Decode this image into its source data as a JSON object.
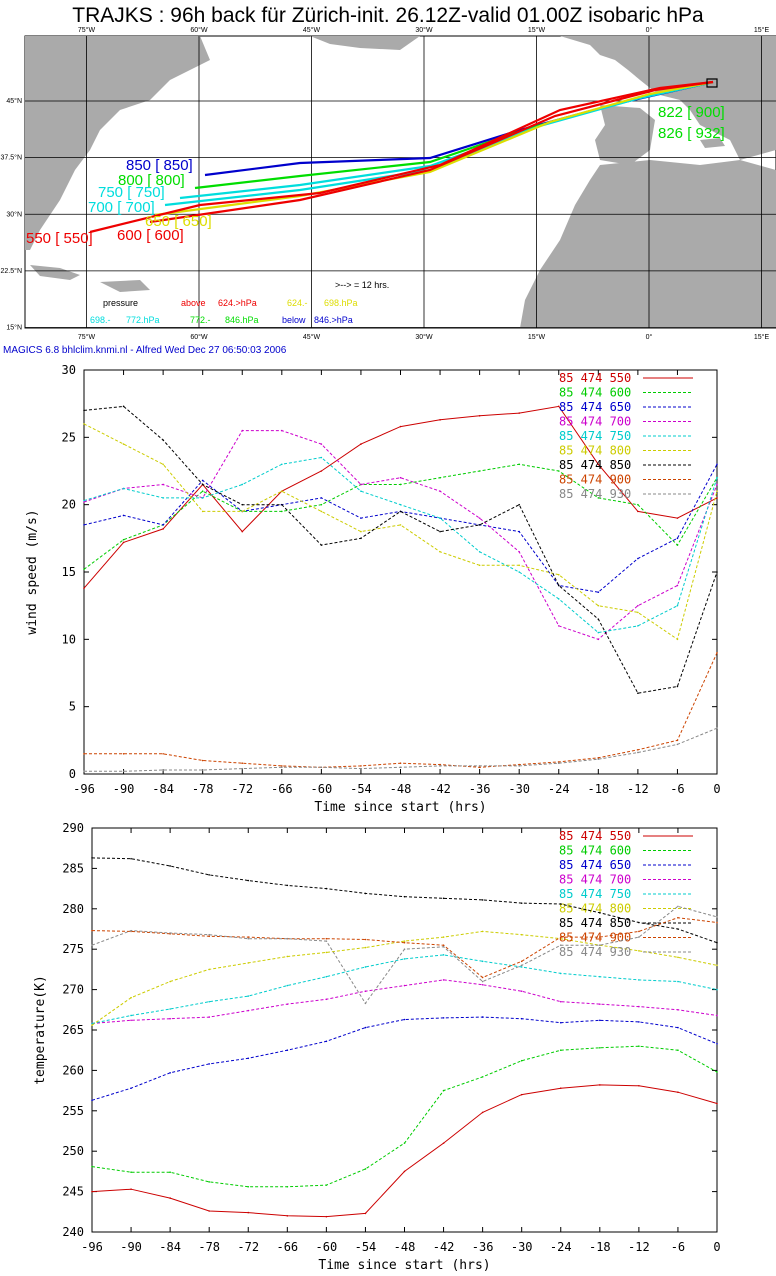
{
  "title": "TRAJKS : 96h back für Zürich-init. 26.12Z-valid 01.00Z isobaric hPa",
  "credit": "MAGICS 6.8 bhlclim.knmi.nl - Alfred Wed Dec 27 06:50:03 2006",
  "map": {
    "lon_labels": [
      "75°W",
      "60°W",
      "45°W",
      "30°W",
      "15°W",
      "0°",
      "15°E"
    ],
    "lon_values": [
      -75,
      -60,
      -45,
      -30,
      -15,
      0,
      15
    ],
    "lat_labels": [
      "45°N",
      "37.5°N",
      "30°N",
      "22.5°N",
      "15°N"
    ],
    "lat_values": [
      45,
      37.5,
      30,
      22.5,
      15
    ],
    "arrow_note": ">--> = 12 hrs.",
    "legend": {
      "pressure": "pressure",
      "above": "above",
      "above_val": "624.>hPa",
      "b2": "624.-",
      "b2_val": "698.hPa",
      "b3": "698.-",
      "b3_val": "772.hPa",
      "b4": "772.-",
      "b4_val": "846.hPa",
      "below": "below",
      "below_val": "846.>hPa"
    },
    "start_labels": [
      {
        "text": "850 [ 850]",
        "color": "#0000cc"
      },
      {
        "text": "800 [ 800]",
        "color": "#00dd00"
      },
      {
        "text": "750 [ 750]",
        "color": "#00dddd"
      },
      {
        "text": "700 [ 700]",
        "color": "#00dddd"
      },
      {
        "text": "650 [ 650]",
        "color": "#dddd00"
      },
      {
        "text": "600 [ 600]",
        "color": "#ee0000"
      },
      {
        "text": "550 [ 550]",
        "color": "#ee0000"
      }
    ],
    "end_labels": [
      {
        "text": "822 [ 900]",
        "color": "#00dd00"
      },
      {
        "text": "826 [ 932]",
        "color": "#00dd00"
      }
    ],
    "colors": {
      "land": "#aaaaaa",
      "sea": "#ffffff",
      "grid": "#000000"
    }
  },
  "chart_data": [
    {
      "type": "line",
      "ylabel": "wind speed (m/s)",
      "xlabel": "Time since start (hrs)",
      "xlim": [
        -96,
        0
      ],
      "ylim": [
        0,
        30
      ],
      "xticks": [
        -96,
        -90,
        -84,
        -78,
        -72,
        -66,
        -60,
        -54,
        -48,
        -42,
        -36,
        -30,
        -24,
        -18,
        -12,
        -6,
        0
      ],
      "yticks": [
        0,
        5,
        10,
        15,
        20,
        25,
        30
      ],
      "x": [
        -96,
        -90,
        -84,
        -78,
        -72,
        -66,
        -60,
        -54,
        -48,
        -42,
        -36,
        -30,
        -24,
        -18,
        -12,
        -6,
        0
      ],
      "series": [
        {
          "name": "85 474 550",
          "color": "#cc0000",
          "values": [
            13.8,
            17.2,
            18.2,
            21.5,
            18,
            21,
            22.5,
            24.5,
            25.8,
            26.3,
            26.6,
            26.8,
            27.3,
            23,
            19.5,
            19,
            20.5
          ]
        },
        {
          "name": "85 474 600",
          "color": "#00cc00",
          "values": [
            15.2,
            17.4,
            18.5,
            21,
            19.5,
            19.5,
            20,
            21.5,
            21.5,
            22,
            22.5,
            23,
            22.5,
            20.5,
            20,
            17,
            22
          ]
        },
        {
          "name": "85 474 650",
          "color": "#0000cc",
          "values": [
            18.5,
            19.2,
            18.5,
            21.8,
            19.5,
            20,
            20.5,
            19,
            19.5,
            19,
            18.5,
            18,
            14,
            13.5,
            16,
            17.5,
            23
          ]
        },
        {
          "name": "85 474 700",
          "color": "#cc00cc",
          "values": [
            20.2,
            21.2,
            21.5,
            20.5,
            25.5,
            25.5,
            24.5,
            21.5,
            22,
            21,
            19,
            16.5,
            11,
            10,
            12.5,
            14,
            21.5
          ]
        },
        {
          "name": "85 474 750",
          "color": "#00cccc",
          "values": [
            20.3,
            21.2,
            20.5,
            20.5,
            21.5,
            23,
            23.5,
            21,
            20,
            19,
            16.5,
            15,
            13,
            10.5,
            11,
            12.5,
            22
          ]
        },
        {
          "name": "85 474 800",
          "color": "#cccc00",
          "values": [
            26,
            24.5,
            23,
            19.5,
            19.5,
            21,
            19.5,
            18,
            18.5,
            16.5,
            15.5,
            15.5,
            14.8,
            12.5,
            12,
            10,
            21
          ]
        },
        {
          "name": "85 474 850",
          "color": "#000000",
          "values": [
            27,
            27.3,
            24.8,
            21.5,
            20,
            20,
            17,
            17.5,
            19.5,
            18,
            18.5,
            20,
            14,
            11.5,
            6,
            6.5,
            15
          ]
        },
        {
          "name": "85 474 900",
          "color": "#cc4400",
          "values": [
            1.5,
            1.5,
            1.5,
            1.0,
            0.8,
            0.6,
            0.5,
            0.6,
            0.8,
            0.7,
            0.5,
            0.7,
            0.9,
            1.2,
            1.8,
            2.5,
            9
          ]
        },
        {
          "name": "85 474 930",
          "color": "#888888",
          "values": [
            0.2,
            0.2,
            0.3,
            0.3,
            0.4,
            0.5,
            0.5,
            0.4,
            0.5,
            0.6,
            0.6,
            0.6,
            0.8,
            1.1,
            1.6,
            2.2,
            3.4
          ]
        }
      ]
    },
    {
      "type": "line",
      "ylabel": "temperature(K)",
      "xlabel": "Time since start (hrs)",
      "xlim": [
        -96,
        0
      ],
      "ylim": [
        240,
        290
      ],
      "xticks": [
        -96,
        -90,
        -84,
        -78,
        -72,
        -66,
        -60,
        -54,
        -48,
        -42,
        -36,
        -30,
        -24,
        -18,
        -12,
        -6,
        0
      ],
      "yticks": [
        240,
        245,
        250,
        255,
        260,
        265,
        270,
        275,
        280,
        285,
        290
      ],
      "x": [
        -96,
        -90,
        -84,
        -78,
        -72,
        -66,
        -60,
        -54,
        -48,
        -42,
        -36,
        -30,
        -24,
        -18,
        -12,
        -6,
        0
      ],
      "series": [
        {
          "name": "85 474 550",
          "color": "#cc0000",
          "values": [
            245,
            245.3,
            244.2,
            242.6,
            242.4,
            242,
            241.9,
            242.3,
            247.5,
            251,
            254.8,
            257,
            257.8,
            258.2,
            258.1,
            257.3,
            255.9
          ]
        },
        {
          "name": "85 474 600",
          "color": "#00cc00",
          "values": [
            248.1,
            247.4,
            247.4,
            246.2,
            245.6,
            245.6,
            245.8,
            247.8,
            251,
            257.5,
            259.2,
            261.2,
            262.5,
            262.8,
            263,
            262.5,
            259.8
          ]
        },
        {
          "name": "85 474 650",
          "color": "#0000cc",
          "values": [
            256.3,
            257.8,
            259.7,
            260.8,
            261.5,
            262.5,
            263.6,
            265.3,
            266.3,
            266.5,
            266.6,
            266.4,
            265.9,
            266.2,
            266,
            265.3,
            263.3
          ]
        },
        {
          "name": "85 474 700",
          "color": "#cc00cc",
          "values": [
            265.8,
            266.2,
            266.4,
            266.6,
            267.4,
            268.2,
            268.8,
            269.8,
            270.5,
            271.2,
            270.6,
            269.8,
            268.5,
            268.2,
            267.9,
            267.5,
            266.8
          ]
        },
        {
          "name": "85 474 750",
          "color": "#00cccc",
          "values": [
            265.8,
            266.8,
            267.6,
            268.5,
            269.2,
            270.5,
            271.6,
            272.8,
            273.8,
            274.3,
            273.5,
            272.8,
            272,
            271.6,
            271.2,
            271,
            270
          ]
        },
        {
          "name": "85 474 800",
          "color": "#cccc00",
          "values": [
            265.6,
            269,
            271,
            272.5,
            273.3,
            274.1,
            274.6,
            275.2,
            276,
            276.5,
            277.2,
            276.8,
            276.3,
            275.5,
            274.8,
            274,
            273
          ]
        },
        {
          "name": "85 474 850",
          "color": "#000000",
          "values": [
            286.3,
            286.2,
            285.3,
            284.2,
            283.5,
            282.9,
            282.5,
            281.9,
            281.5,
            281.3,
            281.1,
            280.7,
            280.6,
            279.5,
            278.3,
            277.5,
            275.8
          ]
        },
        {
          "name": "85 474 900",
          "color": "#cc4400",
          "values": [
            277.3,
            277.2,
            276.9,
            276.6,
            276.5,
            276.3,
            276.3,
            276.2,
            275.8,
            275.5,
            271.5,
            273.5,
            276.5,
            276.5,
            277.2,
            278.9,
            278.3
          ]
        },
        {
          "name": "85 474 930",
          "color": "#888888",
          "values": [
            275.5,
            277.3,
            277,
            276.8,
            276.3,
            276.3,
            276,
            268.3,
            275,
            275.3,
            271,
            273,
            275.5,
            275.5,
            276.5,
            280.3,
            279
          ]
        }
      ]
    }
  ]
}
